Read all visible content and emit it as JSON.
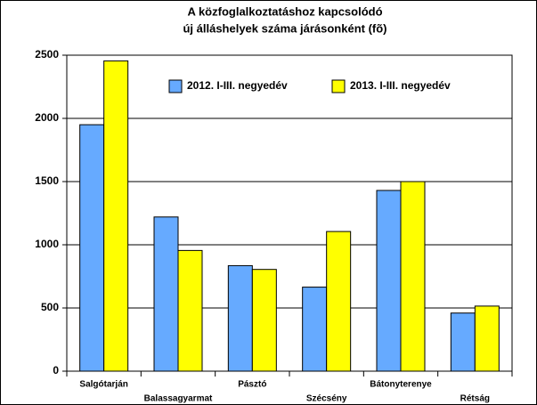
{
  "chart_data": {
    "type": "bar",
    "title": [
      "A közfoglalkoztatáshoz kapcsolódó",
      "új álláshelyek száma járásonként (fõ)"
    ],
    "categories": [
      "Salgótarján",
      "Balassagyarmat",
      "Pásztó",
      "Szécsény",
      "Bátonyterenye",
      "Rétság"
    ],
    "series": [
      {
        "name": "2012. I-III. negyedév",
        "color": "#66aaff",
        "values": [
          1950,
          1220,
          835,
          665,
          1430,
          460
        ]
      },
      {
        "name": "2013. I-III. negyedév",
        "color": "#ffff00",
        "values": [
          2455,
          955,
          805,
          1105,
          1500,
          515
        ]
      }
    ],
    "ylim": [
      0,
      2500
    ],
    "yticks": [
      0,
      500,
      1000,
      1500,
      2000,
      2500
    ],
    "grid": true,
    "legend": "top-right"
  }
}
